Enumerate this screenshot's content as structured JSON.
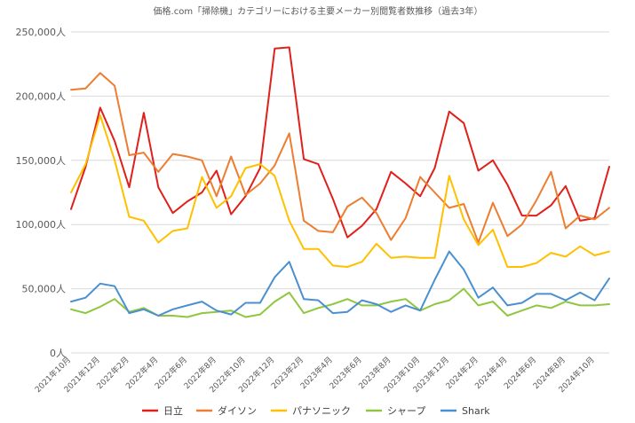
{
  "chart_data": {
    "type": "line",
    "title": "価格.com「掃除機」カテゴリーにおける主要メーカー別閲覧者数推移（過去3年）",
    "ylim": [
      0,
      250000
    ],
    "yticks": [
      0,
      50000,
      100000,
      150000,
      200000,
      250000
    ],
    "ytick_labels": [
      "0人",
      "50,000人",
      "100,000人",
      "150,000人",
      "200,000人",
      "250,000人"
    ],
    "grid": true,
    "legend_position": "bottom",
    "categories": [
      "2021年10月",
      "2021年11月",
      "2021年12月",
      "2022年1月",
      "2022年2月",
      "2022年3月",
      "2022年4月",
      "2022年5月",
      "2022年6月",
      "2022年7月",
      "2022年8月",
      "2022年9月",
      "2022年10月",
      "2022年11月",
      "2022年12月",
      "2023年1月",
      "2023年2月",
      "2023年3月",
      "2023年4月",
      "2023年5月",
      "2023年6月",
      "2023年7月",
      "2023年8月",
      "2023年9月",
      "2023年10月",
      "2023年11月",
      "2023年12月",
      "2024年1月",
      "2024年2月",
      "2024年3月",
      "2024年4月",
      "2024年5月",
      "2024年6月",
      "2024年7月",
      "2024年8月",
      "2024年9月",
      "2024年10月",
      "2024年11月"
    ],
    "xtick_labels": [
      "2021年10月",
      "2021年12月",
      "2022年2月",
      "2022年4月",
      "2022年6月",
      "2022年8月",
      "2022年10月",
      "2022年12月",
      "2023年2月",
      "2023年4月",
      "2023年6月",
      "2023年8月",
      "2023年10月",
      "2023年12月",
      "2024年2月",
      "2024年4月",
      "2024年6月",
      "2024年8月",
      "2024年10月"
    ],
    "series": [
      {
        "name": "日立",
        "color": "#e0201b",
        "values": [
          112000,
          145000,
          191000,
          165000,
          129000,
          187000,
          129000,
          109000,
          118000,
          125000,
          142000,
          108000,
          122000,
          144000,
          237000,
          238000,
          151000,
          147000,
          120000,
          90000,
          99000,
          112000,
          141000,
          132000,
          122000,
          144000,
          188000,
          179000,
          142000,
          150000,
          131000,
          107000,
          107000,
          115000,
          130000,
          103000,
          105000,
          145000
        ]
      },
      {
        "name": "ダイソン",
        "color": "#ed7d31",
        "values": [
          205000,
          206000,
          218000,
          208000,
          154000,
          156000,
          141000,
          155000,
          153000,
          150000,
          122000,
          153000,
          123000,
          132000,
          146000,
          171000,
          103000,
          95000,
          94000,
          114000,
          121000,
          109000,
          88000,
          105000,
          137000,
          125000,
          113000,
          116000,
          86000,
          117000,
          91000,
          100000,
          119000,
          141000,
          97000,
          107000,
          104000,
          113000
        ]
      },
      {
        "name": "パナソニック",
        "color": "#ffc000",
        "values": [
          125000,
          147000,
          185000,
          150000,
          106000,
          103000,
          86000,
          95000,
          97000,
          137000,
          113000,
          122000,
          144000,
          147000,
          138000,
          103000,
          81000,
          81000,
          68000,
          67000,
          71000,
          85000,
          74000,
          75000,
          74000,
          74000,
          138000,
          104000,
          84000,
          96000,
          67000,
          67000,
          70000,
          78000,
          75000,
          83000,
          76000,
          79000
        ]
      },
      {
        "name": "シャープ",
        "color": "#8fc73e",
        "values": [
          34000,
          31000,
          36000,
          42000,
          32000,
          35000,
          29000,
          29000,
          28000,
          31000,
          32000,
          33000,
          28000,
          30000,
          40000,
          47000,
          31000,
          35000,
          38000,
          42000,
          37000,
          37000,
          40000,
          42000,
          33000,
          38000,
          41000,
          50000,
          37000,
          40000,
          29000,
          33000,
          37000,
          35000,
          40000,
          37000,
          37000,
          38000
        ]
      },
      {
        "name": "Shark",
        "color": "#4a90d0",
        "values": [
          40000,
          43000,
          54000,
          52000,
          31000,
          34000,
          29000,
          34000,
          37000,
          40000,
          33000,
          30000,
          39000,
          39000,
          59000,
          71000,
          42000,
          41000,
          31000,
          32000,
          41000,
          38000,
          32000,
          37000,
          33000,
          57000,
          79000,
          65000,
          43000,
          51000,
          37000,
          39000,
          46000,
          46000,
          41000,
          47000,
          41000,
          58000
        ]
      }
    ]
  }
}
